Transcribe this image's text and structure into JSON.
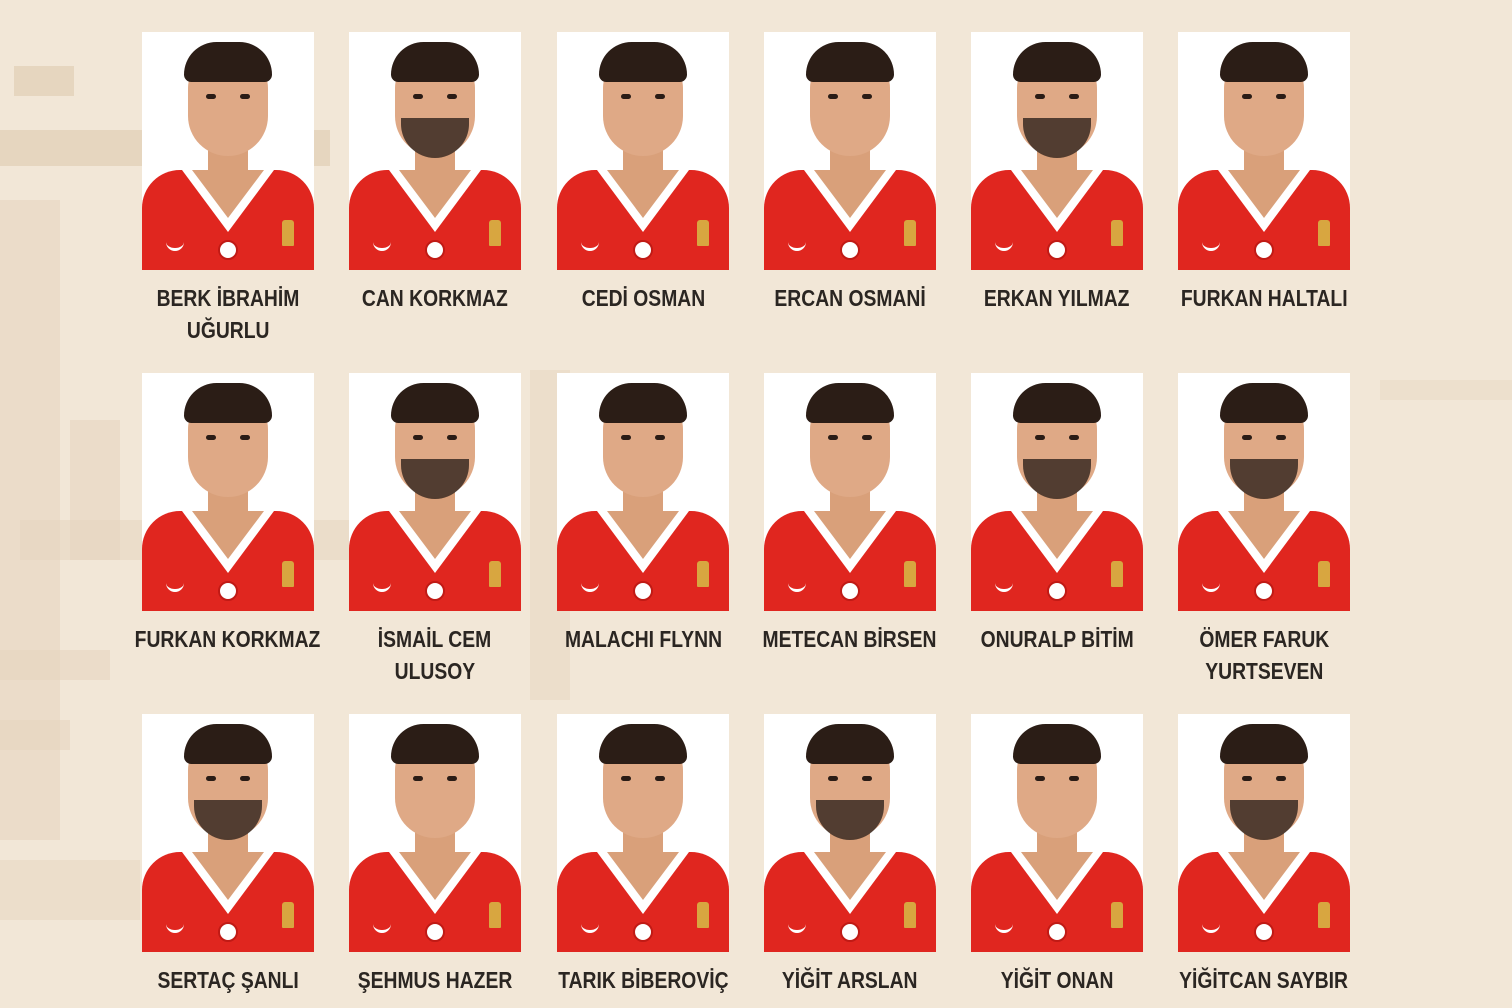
{
  "colors": {
    "background": "#f2e7d7",
    "jersey": "#e0261f",
    "name_text": "#2b2622"
  },
  "players": [
    {
      "name": [
        "BERK İBRAHİM",
        "UĞURLU"
      ],
      "beard": false
    },
    {
      "name": [
        "CAN KORKMAZ"
      ],
      "beard": true
    },
    {
      "name": [
        "CEDİ OSMAN"
      ],
      "beard": false
    },
    {
      "name": [
        "ERCAN OSMANİ"
      ],
      "beard": false
    },
    {
      "name": [
        "ERKAN YILMAZ"
      ],
      "beard": true
    },
    {
      "name": [
        "FURKAN HALTALI"
      ],
      "beard": false
    },
    {
      "name": [
        "FURKAN KORKMAZ"
      ],
      "beard": false
    },
    {
      "name": [
        "İSMAİL CEM",
        "ULUSOY"
      ],
      "beard": true
    },
    {
      "name": [
        "MALACHI FLYNN"
      ],
      "beard": false
    },
    {
      "name": [
        "METECAN BİRSEN"
      ],
      "beard": false
    },
    {
      "name": [
        "ONURALP BİTİM"
      ],
      "beard": true
    },
    {
      "name": [
        "ÖMER FARUK",
        "YURTSEVEN"
      ],
      "beard": true
    },
    {
      "name": [
        "SERTAÇ ŞANLI"
      ],
      "beard": true
    },
    {
      "name": [
        "ŞEHMUS HAZER"
      ],
      "beard": false
    },
    {
      "name": [
        "TARIK BİBEROVİÇ"
      ],
      "beard": false
    },
    {
      "name": [
        "YİĞİT ARSLAN"
      ],
      "beard": true
    },
    {
      "name": [
        "YİĞİT ONAN"
      ],
      "beard": false
    },
    {
      "name": [
        "YİĞİTCAN SAYBIR"
      ],
      "beard": true
    }
  ]
}
